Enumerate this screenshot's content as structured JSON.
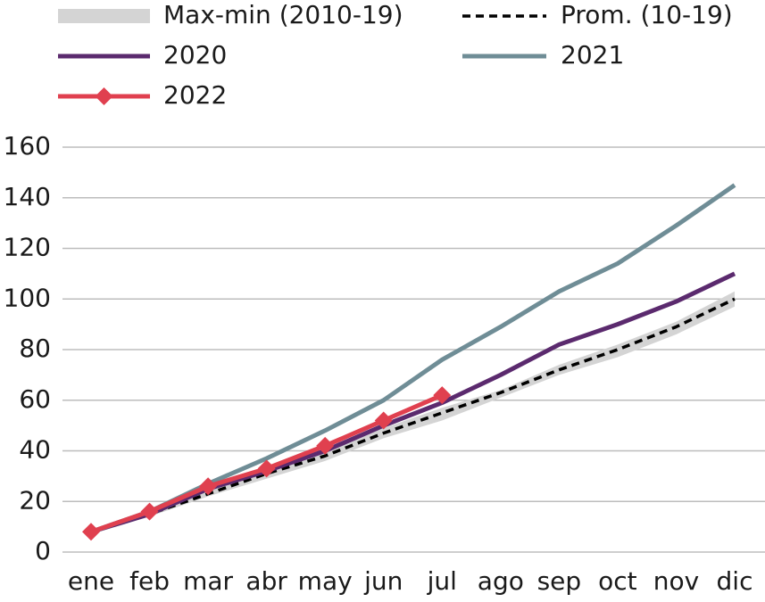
{
  "chart_data": {
    "type": "line",
    "categories": [
      "ene",
      "feb",
      "mar",
      "abr",
      "may",
      "jun",
      "jul",
      "ago",
      "sep",
      "oct",
      "nov",
      "dic"
    ],
    "ylim": [
      0,
      160
    ],
    "yticks": [
      0,
      20,
      40,
      60,
      80,
      100,
      120,
      140,
      160
    ],
    "grid": true,
    "series": [
      {
        "name": "Max-min (2010-19)",
        "color": "#d4d4d4",
        "low": [
          7,
          14,
          22,
          29,
          36,
          45,
          52,
          61,
          70,
          77,
          86,
          97
        ],
        "high": [
          9,
          16,
          25,
          32,
          40,
          49,
          57,
          64,
          74,
          82,
          91,
          103
        ]
      },
      {
        "name": "Prom. (10-19)",
        "color": "#000000",
        "dashed": true,
        "values": [
          8,
          15,
          23,
          31,
          38,
          47,
          55,
          63,
          72,
          80,
          89,
          100
        ]
      },
      {
        "name": "2020",
        "color": "#5b2a6e",
        "values": [
          8,
          15,
          25,
          32,
          40,
          50,
          59,
          70,
          82,
          90,
          99,
          110
        ]
      },
      {
        "name": "2021",
        "color": "#6f8d96",
        "values": [
          8,
          16,
          27,
          37,
          48,
          60,
          76,
          89,
          103,
          114,
          129,
          145
        ]
      },
      {
        "name": "2022",
        "color": "#e0404f",
        "marker": "diamond",
        "values": [
          8,
          16,
          26,
          33,
          42,
          52,
          62,
          null,
          null,
          null,
          null,
          null
        ]
      }
    ]
  }
}
